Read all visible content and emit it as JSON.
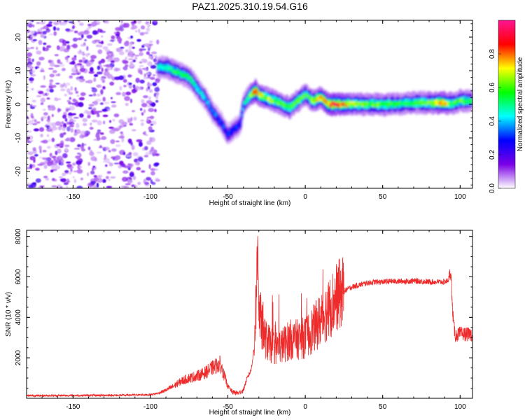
{
  "figure": {
    "title": "PAZ1.2025.310.19.54.G16"
  },
  "chart_data": [
    {
      "type": "heatmap",
      "title": "",
      "xlabel": "Height of straight line (km)",
      "ylabel": "Frequency (Hz)",
      "xlim": [
        -180,
        108
      ],
      "ylim": [
        -25,
        25
      ],
      "xticks": [
        -150,
        -100,
        -50,
        0,
        50,
        100
      ],
      "yticks": [
        -20,
        -10,
        0,
        10,
        20
      ],
      "noise_region_x": [
        -180,
        -95
      ],
      "ridge": {
        "x": [
          -95,
          -90,
          -85,
          -80,
          -75,
          -70,
          -65,
          -60,
          -55,
          -50,
          -45,
          -42,
          -40,
          -35,
          -32,
          -30,
          -25,
          -20,
          -15,
          -10,
          -5,
          0,
          5,
          10,
          15,
          20,
          30,
          40,
          50,
          60,
          70,
          80,
          90,
          95,
          100,
          105,
          108
        ],
        "y": [
          11,
          11,
          10,
          9,
          8,
          5,
          2,
          -2,
          -5,
          -9,
          -7,
          -6,
          0,
          3,
          4,
          3,
          2,
          1,
          0,
          -1,
          1,
          3,
          1,
          2,
          0,
          0,
          0,
          0,
          0,
          0,
          0.5,
          0.5,
          0.5,
          0.2,
          1,
          1,
          1
        ]
      },
      "ridge_amplitude": [
        0.45,
        0.5,
        0.55,
        0.5,
        0.5,
        0.45,
        0.4,
        0.35,
        0.3,
        0.3,
        0.3,
        0.3,
        0.35,
        0.6,
        0.85,
        0.7,
        0.65,
        0.6,
        0.55,
        0.6,
        0.6,
        0.55,
        0.6,
        0.75,
        0.8,
        0.9,
        0.65,
        0.6,
        0.6,
        0.55,
        0.55,
        0.6,
        0.8,
        0.55,
        0.6,
        0.55,
        0.5
      ],
      "colorbar": {
        "label": "Normalized spectral amplitude",
        "ticks": [
          "0.0",
          "0.2",
          "0.4",
          "0.6",
          "0.8"
        ],
        "tick_values": [
          0.0,
          0.2,
          0.4,
          0.6,
          0.8
        ],
        "range": [
          0,
          1
        ],
        "colors": [
          "#ffffff",
          "#7a00e6",
          "#0000ff",
          "#00ffff",
          "#00ff00",
          "#ffff00",
          "#ff0000",
          "#ff1493"
        ]
      }
    },
    {
      "type": "line",
      "title": "",
      "xlabel": "Height of straight line (km)",
      "ylabel": "SNR (10 * v/v)",
      "xlim": [
        -180,
        108
      ],
      "ylim": [
        0,
        8300
      ],
      "xticks": [
        -150,
        -100,
        -50,
        0,
        50,
        100
      ],
      "yticks": [
        2000,
        4000,
        6000,
        8000
      ],
      "series": [
        {
          "name": "SNR",
          "color": "#ee2a2a",
          "x": [
            -180,
            -150,
            -120,
            -100,
            -95,
            -90,
            -85,
            -80,
            -75,
            -70,
            -65,
            -60,
            -55,
            -50,
            -47,
            -43,
            -40,
            -38,
            -35,
            -33,
            -31,
            -30.5,
            -30,
            -28,
            -25,
            -20,
            -15,
            -10,
            -5,
            0,
            5,
            10,
            15,
            20,
            25,
            30,
            35,
            40,
            45,
            50,
            55,
            60,
            65,
            70,
            75,
            80,
            85,
            90,
            92,
            93,
            94,
            95,
            96,
            97,
            100,
            105,
            108
          ],
          "y": [
            130,
            140,
            150,
            180,
            250,
            400,
            600,
            850,
            1000,
            1100,
            1250,
            1500,
            1700,
            600,
            300,
            250,
            400,
            900,
            1400,
            2500,
            6500,
            8300,
            4500,
            3500,
            2800,
            2500,
            2600,
            2900,
            2900,
            3000,
            3400,
            3900,
            4400,
            5000,
            5300,
            5500,
            5600,
            5700,
            5750,
            5750,
            5780,
            5780,
            5780,
            5800,
            5780,
            5750,
            5750,
            5750,
            5800,
            6000,
            6300,
            4500,
            3500,
            3100,
            3200,
            3150,
            3150
          ]
        }
      ]
    }
  ]
}
